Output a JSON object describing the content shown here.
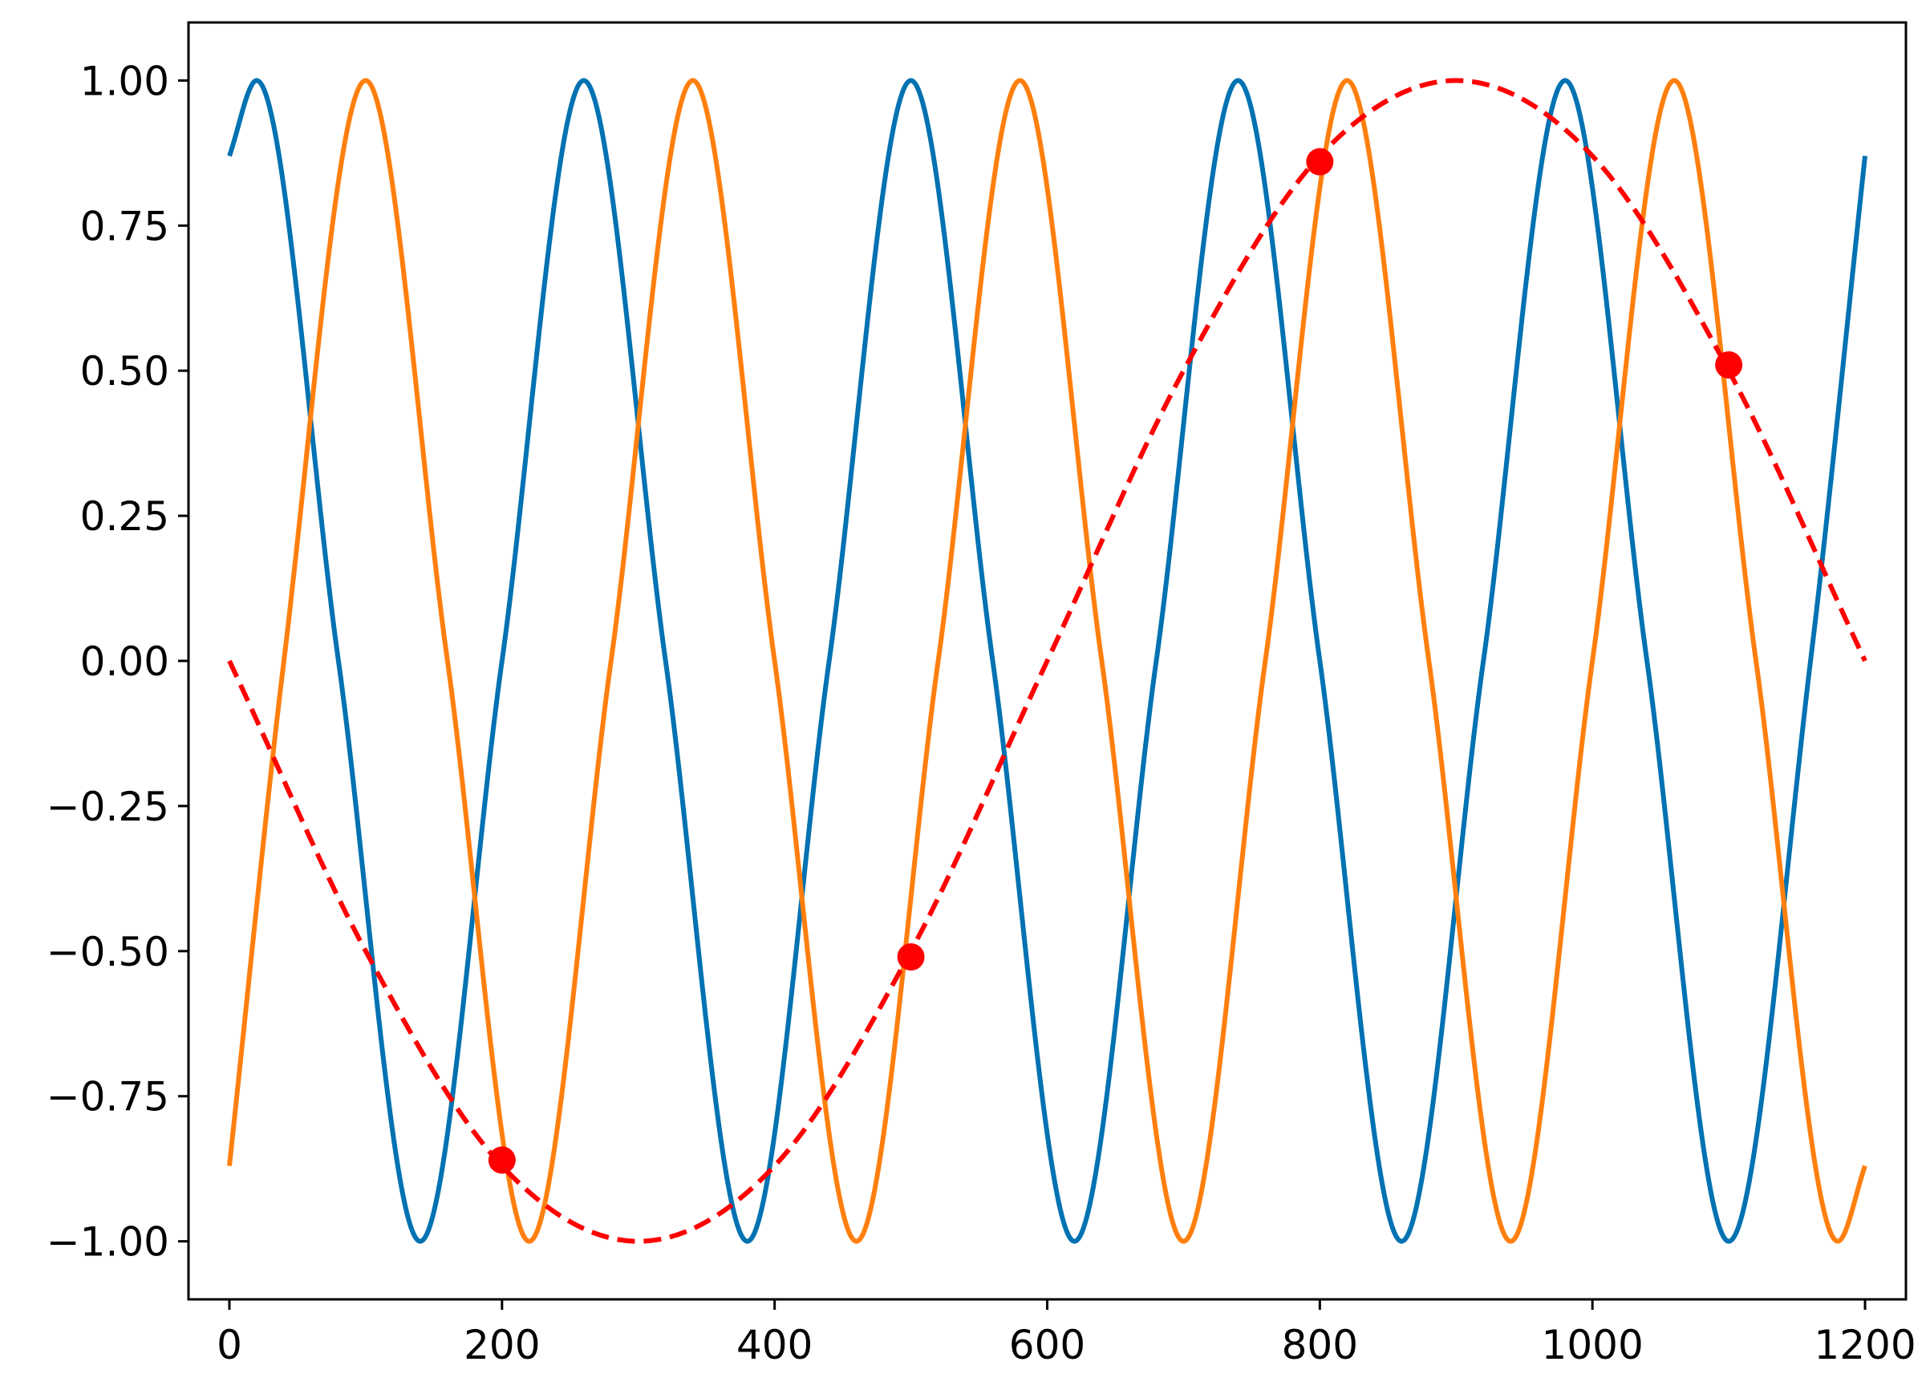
{
  "chart_data": {
    "type": "line",
    "title": "",
    "xlabel": "",
    "ylabel": "",
    "xlim": [
      -30,
      1230
    ],
    "ylim": [
      -1.1,
      1.1
    ],
    "grid": false,
    "legend": "none",
    "x_ticks": [
      0,
      200,
      400,
      600,
      800,
      1000,
      1200
    ],
    "x_tick_labels": [
      "0",
      "200",
      "400",
      "600",
      "800",
      "1000",
      "1200"
    ],
    "y_ticks": [
      1.0,
      0.75,
      0.5,
      0.25,
      0.0,
      -0.25,
      -0.5,
      -0.75,
      -1.0
    ],
    "y_tick_labels": [
      "1.00",
      "0.75",
      "0.50",
      "0.25",
      "0.00",
      "−0.25",
      "−0.50",
      "−0.75",
      "−1.00"
    ],
    "series": [
      {
        "style": "solid",
        "color": "#0072b2",
        "x": [
          0,
          20,
          80,
          140,
          200,
          260,
          320,
          380,
          440,
          500,
          560,
          620,
          680,
          740,
          800,
          860,
          920,
          980,
          1040,
          1100,
          1160,
          1200
        ],
        "y": [
          0.87,
          1.0,
          0.0,
          -1.0,
          0.0,
          1.0,
          0.0,
          -1.0,
          0.0,
          1.0,
          0.0,
          -1.0,
          0.0,
          1.0,
          0.0,
          -1.0,
          0.0,
          1.0,
          0.0,
          -1.0,
          0.0,
          0.87
        ]
      },
      {
        "style": "solid",
        "color": "#ff7f0e",
        "x": [
          0,
          40,
          100,
          160,
          220,
          280,
          340,
          400,
          460,
          520,
          580,
          640,
          700,
          760,
          820,
          880,
          940,
          1000,
          1060,
          1120,
          1180,
          1200
        ],
        "y": [
          -0.87,
          0.0,
          1.0,
          0.0,
          -1.0,
          0.0,
          1.0,
          0.0,
          -1.0,
          0.0,
          1.0,
          0.0,
          -1.0,
          0.0,
          1.0,
          0.0,
          -1.0,
          0.0,
          1.0,
          0.0,
          -1.0,
          -0.87
        ]
      },
      {
        "style": "dashed",
        "color": "#ff0000",
        "x": [
          0,
          100,
          200,
          300,
          400,
          500,
          600,
          700,
          800,
          900,
          1000,
          1100,
          1200
        ],
        "y": [
          0.0,
          -0.5,
          -0.87,
          -1.0,
          -0.87,
          -0.5,
          0.0,
          0.5,
          0.87,
          1.0,
          0.87,
          0.5,
          0.0
        ]
      }
    ],
    "markers": {
      "color": "#ff0000",
      "x": [
        200,
        500,
        800,
        1100
      ],
      "y": [
        -0.86,
        -0.51,
        0.86,
        0.51
      ]
    }
  }
}
